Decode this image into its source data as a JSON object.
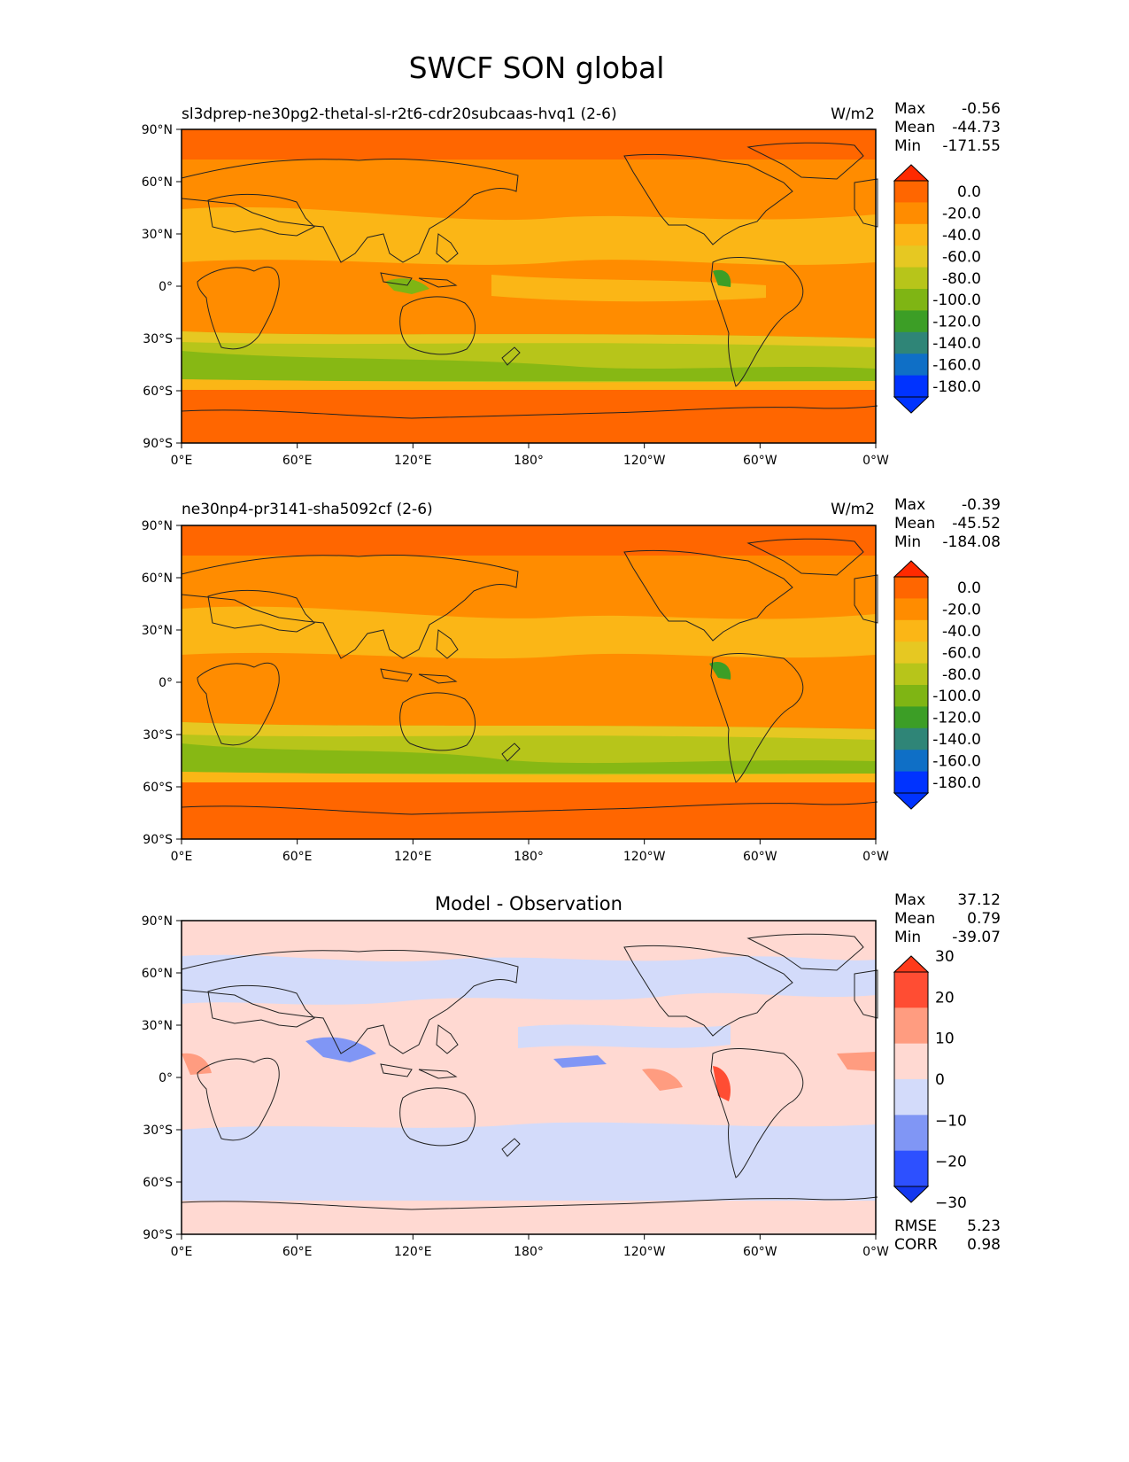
{
  "title": "SWCF SON global",
  "axis": {
    "lat_ticks": [
      "90°N",
      "60°N",
      "30°N",
      "0°",
      "30°S",
      "60°S",
      "90°S"
    ],
    "lon_ticks": [
      "0°E",
      "60°E",
      "120°E",
      "180°",
      "120°W",
      "60°W",
      "0°W"
    ]
  },
  "panels": [
    {
      "title": "sl3dprep-ne30pg2-thetal-sl-r2t6-cdr20subcaas-hvq1 (2-6)",
      "units": "W/m2",
      "stats": {
        "max_label": "Max",
        "max": "-0.56",
        "mean_label": "Mean",
        "mean": "-44.73",
        "min_label": "Min",
        "min": "-171.55"
      },
      "colorbar": {
        "labels": [
          "0.0",
          "-20.0",
          "-40.0",
          "-60.0",
          "-80.0",
          "-100.0",
          "-120.0",
          "-140.0",
          "-160.0",
          "-180.0"
        ],
        "colors": [
          "#ff2a00",
          "#ff6600",
          "#ff8c00",
          "#fbb616",
          "#e6c822",
          "#b7c51a",
          "#7fb514",
          "#3c9e26",
          "#2f8577",
          "#0f6fc6",
          "#0033ff"
        ]
      }
    },
    {
      "title": "ne30np4-pr3141-sha5092cf (2-6)",
      "units": "W/m2",
      "stats": {
        "max_label": "Max",
        "max": "-0.39",
        "mean_label": "Mean",
        "mean": "-45.52",
        "min_label": "Min",
        "min": "-184.08"
      },
      "colorbar": {
        "labels": [
          "0.0",
          "-20.0",
          "-40.0",
          "-60.0",
          "-80.0",
          "-100.0",
          "-120.0",
          "-140.0",
          "-160.0",
          "-180.0"
        ],
        "colors": [
          "#ff2a00",
          "#ff6600",
          "#ff8c00",
          "#fbb616",
          "#e6c822",
          "#b7c51a",
          "#7fb514",
          "#3c9e26",
          "#2f8577",
          "#0f6fc6",
          "#0033ff"
        ]
      }
    },
    {
      "title": "Model - Observation",
      "units": "",
      "stats": {
        "max_label": "Max",
        "max": "37.12",
        "mean_label": "Mean",
        "mean": "0.79",
        "min_label": "Min",
        "min": "-39.07"
      },
      "colorbar": {
        "labels": [
          "30",
          "20",
          "10",
          "0",
          "−10",
          "−20",
          "−30"
        ],
        "colors": [
          "#ff3a1a",
          "#ff4d33",
          "#ff9c80",
          "#ffd9d2",
          "#d3dbfa",
          "#8096f5",
          "#2d50ff",
          "#1438f0"
        ]
      },
      "rmse_label": "RMSE",
      "rmse": "5.23",
      "corr_label": "CORR",
      "corr": "0.98"
    }
  ]
}
